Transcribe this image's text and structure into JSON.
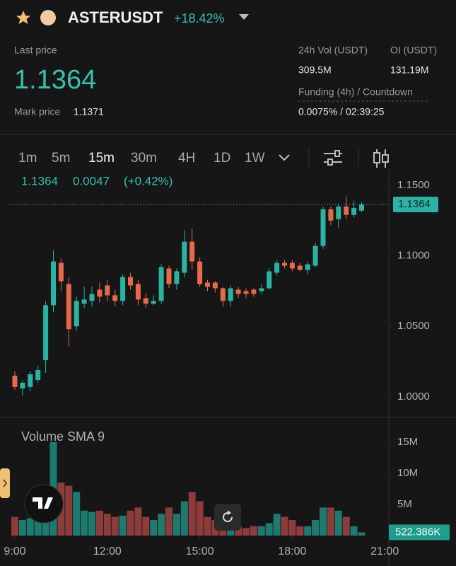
{
  "header": {
    "symbol": "ASTERUSDT",
    "change": "+18.42%",
    "last_price_label": "Last price",
    "last_price": "1.1364",
    "mark_price_label": "Mark price",
    "mark_price": "1.1371",
    "vol_label": "24h Vol (USDT)",
    "vol": "309.5M",
    "oi_label": "OI (USDT)",
    "oi": "131.19M",
    "funding_label": "Funding (4h) / Countdown",
    "funding": "0.0075% / 02:39:25"
  },
  "intervals": [
    "1m",
    "5m",
    "15m",
    "30m",
    "4H",
    "1D",
    "1W"
  ],
  "active_interval": 2,
  "legend": {
    "price": "1.1364",
    "change": "0.0047",
    "change_pct": "(+0.42%)"
  },
  "chart_data": {
    "type": "candlestick",
    "up_color": "#2bb3a2",
    "down_color": "#e5694a",
    "ylim": [
      0.9854,
      1.161
    ],
    "yticks": [
      {
        "value": 1.15,
        "label": "1.1500"
      },
      {
        "value": 1.1,
        "label": "1.1000"
      },
      {
        "value": 1.05,
        "label": "1.0500"
      },
      {
        "value": 1.0,
        "label": "1.0000"
      }
    ],
    "price_tag": {
      "value": 1.1364,
      "label": "1.1364"
    },
    "xticks": [
      {
        "value": 0,
        "label": "9:00"
      },
      {
        "value": 12,
        "label": "12:00"
      },
      {
        "value": 24,
        "label": "15:00"
      },
      {
        "value": 36,
        "label": "18:00"
      },
      {
        "value": 48,
        "label": "21:00"
      }
    ],
    "candles": [
      {
        "open": 1.015,
        "high": 1.018,
        "low": 1.005,
        "close": 1.007
      },
      {
        "open": 1.006,
        "high": 1.012,
        "low": 1.001,
        "close": 1.01
      },
      {
        "open": 1.007,
        "high": 1.018,
        "low": 1.004,
        "close": 1.016
      },
      {
        "open": 1.012,
        "high": 1.022,
        "low": 1.01,
        "close": 1.019
      },
      {
        "open": 1.026,
        "high": 1.068,
        "low": 1.017,
        "close": 1.065
      },
      {
        "open": 1.065,
        "high": 1.104,
        "low": 1.06,
        "close": 1.096
      },
      {
        "open": 1.095,
        "high": 1.098,
        "low": 1.075,
        "close": 1.082
      },
      {
        "open": 1.08,
        "high": 1.085,
        "low": 1.036,
        "close": 1.048
      },
      {
        "open": 1.05,
        "high": 1.071,
        "low": 1.047,
        "close": 1.068
      },
      {
        "open": 1.066,
        "high": 1.078,
        "low": 1.063,
        "close": 1.069
      },
      {
        "open": 1.068,
        "high": 1.078,
        "low": 1.064,
        "close": 1.073
      },
      {
        "open": 1.076,
        "high": 1.081,
        "low": 1.067,
        "close": 1.071
      },
      {
        "open": 1.079,
        "high": 1.083,
        "low": 1.068,
        "close": 1.072
      },
      {
        "open": 1.072,
        "high": 1.076,
        "low": 1.064,
        "close": 1.068
      },
      {
        "open": 1.068,
        "high": 1.087,
        "low": 1.065,
        "close": 1.085
      },
      {
        "open": 1.085,
        "high": 1.088,
        "low": 1.076,
        "close": 1.079
      },
      {
        "open": 1.08,
        "high": 1.083,
        "low": 1.065,
        "close": 1.069
      },
      {
        "open": 1.07,
        "high": 1.073,
        "low": 1.063,
        "close": 1.066
      },
      {
        "open": 1.066,
        "high": 1.072,
        "low": 1.065,
        "close": 1.068
      },
      {
        "open": 1.068,
        "high": 1.094,
        "low": 1.066,
        "close": 1.092
      },
      {
        "open": 1.091,
        "high": 1.093,
        "low": 1.077,
        "close": 1.08
      },
      {
        "open": 1.08,
        "high": 1.091,
        "low": 1.076,
        "close": 1.089
      },
      {
        "open": 1.088,
        "high": 1.118,
        "low": 1.085,
        "close": 1.11
      },
      {
        "open": 1.11,
        "high": 1.119,
        "low": 1.09,
        "close": 1.096
      },
      {
        "open": 1.096,
        "high": 1.099,
        "low": 1.078,
        "close": 1.08
      },
      {
        "open": 1.081,
        "high": 1.083,
        "low": 1.075,
        "close": 1.078
      },
      {
        "open": 1.081,
        "high": 1.082,
        "low": 1.074,
        "close": 1.077
      },
      {
        "open": 1.077,
        "high": 1.078,
        "low": 1.064,
        "close": 1.068
      },
      {
        "open": 1.068,
        "high": 1.079,
        "low": 1.064,
        "close": 1.077
      },
      {
        "open": 1.076,
        "high": 1.078,
        "low": 1.07,
        "close": 1.073
      },
      {
        "open": 1.075,
        "high": 1.077,
        "low": 1.07,
        "close": 1.073
      },
      {
        "open": 1.076,
        "high": 1.077,
        "low": 1.071,
        "close": 1.073
      },
      {
        "open": 1.075,
        "high": 1.08,
        "low": 1.073,
        "close": 1.077
      },
      {
        "open": 1.077,
        "high": 1.091,
        "low": 1.076,
        "close": 1.089
      },
      {
        "open": 1.088,
        "high": 1.097,
        "low": 1.086,
        "close": 1.095
      },
      {
        "open": 1.095,
        "high": 1.097,
        "low": 1.091,
        "close": 1.093
      },
      {
        "open": 1.095,
        "high": 1.097,
        "low": 1.089,
        "close": 1.091
      },
      {
        "open": 1.093,
        "high": 1.095,
        "low": 1.089,
        "close": 1.09
      },
      {
        "open": 1.09,
        "high": 1.096,
        "low": 1.087,
        "close": 1.094
      },
      {
        "open": 1.093,
        "high": 1.109,
        "low": 1.092,
        "close": 1.107
      },
      {
        "open": 1.107,
        "high": 1.135,
        "low": 1.105,
        "close": 1.133
      },
      {
        "open": 1.133,
        "high": 1.135,
        "low": 1.122,
        "close": 1.125
      },
      {
        "open": 1.126,
        "high": 1.137,
        "low": 1.12,
        "close": 1.135
      },
      {
        "open": 1.135,
        "high": 1.142,
        "low": 1.126,
        "close": 1.129
      },
      {
        "open": 1.129,
        "high": 1.139,
        "low": 1.127,
        "close": 1.134
      },
      {
        "open": 1.132,
        "high": 1.138,
        "low": 1.131,
        "close": 1.1364
      }
    ],
    "volume": {
      "title": "Volume SMA 9",
      "ylim": [
        0,
        18400000
      ],
      "yticks": [
        {
          "value": 15000000,
          "label": "15M"
        },
        {
          "value": 10000000,
          "label": "10M"
        },
        {
          "value": 5000000,
          "label": "5M"
        }
      ],
      "tag": {
        "value": 522386,
        "label": "522.386K"
      },
      "values": [
        3000000,
        2500000,
        2800000,
        2800000,
        8000000,
        15000000,
        8500000,
        8000000,
        7000000,
        4000000,
        3800000,
        4000000,
        3500000,
        3000000,
        3200000,
        4000000,
        4500000,
        3000000,
        2500000,
        3500000,
        4500000,
        3500000,
        5500000,
        7000000,
        5500000,
        3000000,
        2500000,
        2000000,
        2500000,
        1500000,
        1200000,
        1500000,
        1500000,
        2000000,
        3500000,
        3000000,
        2500000,
        1500000,
        1500000,
        2500000,
        4500000,
        4500000,
        4000000,
        3000000,
        1500000,
        522386
      ]
    }
  }
}
